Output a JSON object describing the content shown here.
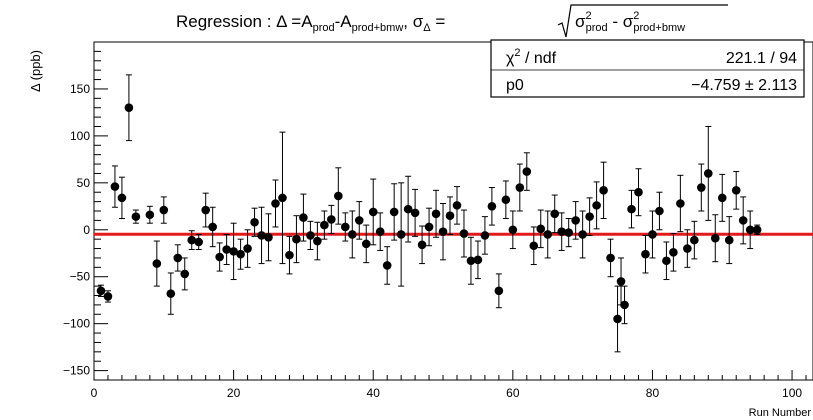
{
  "chart_data": {
    "type": "scatter",
    "title": {
      "main": "Regression : Δ =A",
      "sub1": "prod",
      "mid1": "-A",
      "sub2": "prod+bmw",
      "mid2": ", σ",
      "sub3": "Δ",
      "mid3": " = ",
      "rad_sigma1": "σ",
      "rad_sup1": "2",
      "rad_sub1": "prod",
      "rad_minus": " - ",
      "rad_sigma2": "σ",
      "rad_sup2": "2",
      "rad_sub2": "prod+bmw"
    },
    "xlabel": "Run Number",
    "ylabel": "Δ (ppb)",
    "xlim": [
      0,
      103
    ],
    "ylim": [
      -160,
      200
    ],
    "x_ticks": [
      0,
      20,
      40,
      60,
      80,
      100
    ],
    "y_ticks": [
      -150,
      -100,
      -50,
      0,
      50,
      100,
      150
    ],
    "y_tick_labels": [
      "−150",
      "−100",
      "−50",
      "0",
      "50",
      "100",
      "150"
    ],
    "fit": {
      "function": "constant",
      "p0": -4.759,
      "p0_error": 2.113,
      "color": "#e31a1c"
    },
    "stats": {
      "chi2_label": "χ",
      "chi2_sup": "2",
      "chi2_rest": " / ndf",
      "chi2_value": "221.1 / 94",
      "p0_label": "p0",
      "p0_value": "−4.759 ± 2.113"
    },
    "points": [
      {
        "x": 1,
        "y": -65,
        "err": 6
      },
      {
        "x": 2,
        "y": -71,
        "err": 6
      },
      {
        "x": 3,
        "y": 46,
        "err": 22
      },
      {
        "x": 4,
        "y": 34,
        "err": 22
      },
      {
        "x": 5,
        "y": 130,
        "err": 35
      },
      {
        "x": 6,
        "y": 14,
        "err": 7
      },
      {
        "x": 8,
        "y": 16,
        "err": 9
      },
      {
        "x": 9,
        "y": -36,
        "err": 24
      },
      {
        "x": 10,
        "y": 21,
        "err": 14
      },
      {
        "x": 11,
        "y": -68,
        "err": 22
      },
      {
        "x": 12,
        "y": -30,
        "err": 14
      },
      {
        "x": 13,
        "y": -47,
        "err": 17
      },
      {
        "x": 14,
        "y": -11,
        "err": 10
      },
      {
        "x": 15,
        "y": -13,
        "err": 8
      },
      {
        "x": 16,
        "y": 21,
        "err": 18
      },
      {
        "x": 17,
        "y": 3,
        "err": 21
      },
      {
        "x": 18,
        "y": -29,
        "err": 15
      },
      {
        "x": 19,
        "y": -21,
        "err": 16
      },
      {
        "x": 20,
        "y": -23,
        "err": 30
      },
      {
        "x": 21,
        "y": -26,
        "err": 16
      },
      {
        "x": 22,
        "y": -20,
        "err": 20
      },
      {
        "x": 23,
        "y": 8,
        "err": 15
      },
      {
        "x": 24,
        "y": -6,
        "err": 30
      },
      {
        "x": 25,
        "y": -8,
        "err": 25
      },
      {
        "x": 26,
        "y": 28,
        "err": 25
      },
      {
        "x": 27,
        "y": 34,
        "err": 70
      },
      {
        "x": 28,
        "y": -27,
        "err": 20
      },
      {
        "x": 29,
        "y": -10,
        "err": 25
      },
      {
        "x": 30,
        "y": 13,
        "err": 25
      },
      {
        "x": 31,
        "y": -6,
        "err": 15
      },
      {
        "x": 32,
        "y": -12,
        "err": 20
      },
      {
        "x": 33,
        "y": 5,
        "err": 15
      },
      {
        "x": 34,
        "y": 11,
        "err": 15
      },
      {
        "x": 35,
        "y": 36,
        "err": 30
      },
      {
        "x": 36,
        "y": 3,
        "err": 15
      },
      {
        "x": 37,
        "y": -5,
        "err": 25
      },
      {
        "x": 38,
        "y": 10,
        "err": 20
      },
      {
        "x": 39,
        "y": -15,
        "err": 20
      },
      {
        "x": 40,
        "y": 19,
        "err": 35
      },
      {
        "x": 41,
        "y": -2,
        "err": 20
      },
      {
        "x": 42,
        "y": -38,
        "err": 20
      },
      {
        "x": 43,
        "y": 19,
        "err": 30
      },
      {
        "x": 44,
        "y": -5,
        "err": 55
      },
      {
        "x": 45,
        "y": 22,
        "err": 35
      },
      {
        "x": 46,
        "y": 18,
        "err": 25
      },
      {
        "x": 47,
        "y": -16,
        "err": 20
      },
      {
        "x": 48,
        "y": 3,
        "err": 20
      },
      {
        "x": 49,
        "y": 17,
        "err": 25
      },
      {
        "x": 50,
        "y": -2,
        "err": 30
      },
      {
        "x": 51,
        "y": 15,
        "err": 20
      },
      {
        "x": 52,
        "y": 26,
        "err": 20
      },
      {
        "x": 53,
        "y": -4,
        "err": 25
      },
      {
        "x": 54,
        "y": -33,
        "err": 25
      },
      {
        "x": 55,
        "y": -32,
        "err": 20
      },
      {
        "x": 56,
        "y": -6,
        "err": 20
      },
      {
        "x": 57,
        "y": 25,
        "err": 20
      },
      {
        "x": 58,
        "y": -65,
        "err": 18
      },
      {
        "x": 59,
        "y": 32,
        "err": 20
      },
      {
        "x": 60,
        "y": 0,
        "err": 20
      },
      {
        "x": 61,
        "y": 45,
        "err": 25
      },
      {
        "x": 62,
        "y": 62,
        "err": 20
      },
      {
        "x": 63,
        "y": -17,
        "err": 20
      },
      {
        "x": 64,
        "y": 1,
        "err": 20
      },
      {
        "x": 65,
        "y": -5,
        "err": 25
      },
      {
        "x": 66,
        "y": 17,
        "err": 20
      },
      {
        "x": 67,
        "y": -2,
        "err": 20
      },
      {
        "x": 68,
        "y": -3,
        "err": 15
      },
      {
        "x": 69,
        "y": 10,
        "err": 20
      },
      {
        "x": 70,
        "y": -5,
        "err": 25
      },
      {
        "x": 71,
        "y": 14,
        "err": 20
      },
      {
        "x": 72,
        "y": 26,
        "err": 25
      },
      {
        "x": 73,
        "y": 42,
        "err": 30
      },
      {
        "x": 74,
        "y": -30,
        "err": 20
      },
      {
        "x": 75,
        "y": -95,
        "err": 35
      },
      {
        "x": 75.5,
        "y": -55,
        "err": 25
      },
      {
        "x": 76,
        "y": -80,
        "err": 20
      },
      {
        "x": 77,
        "y": 22,
        "err": 20
      },
      {
        "x": 78,
        "y": 40,
        "err": 25
      },
      {
        "x": 79,
        "y": -26,
        "err": 20
      },
      {
        "x": 80,
        "y": -5,
        "err": 25
      },
      {
        "x": 81,
        "y": 20,
        "err": 20
      },
      {
        "x": 82,
        "y": -33,
        "err": 20
      },
      {
        "x": 83,
        "y": -24,
        "err": 20
      },
      {
        "x": 84,
        "y": 28,
        "err": 30
      },
      {
        "x": 85,
        "y": -20,
        "err": 20
      },
      {
        "x": 86,
        "y": -11,
        "err": 20
      },
      {
        "x": 87,
        "y": 45,
        "err": 25
      },
      {
        "x": 88,
        "y": 60,
        "err": 50
      },
      {
        "x": 89,
        "y": -9,
        "err": 25
      },
      {
        "x": 90,
        "y": 34,
        "err": 25
      },
      {
        "x": 91,
        "y": -11,
        "err": 25
      },
      {
        "x": 92,
        "y": 42,
        "err": 20
      },
      {
        "x": 93,
        "y": 10,
        "err": 25
      },
      {
        "x": 94,
        "y": 0,
        "err": 20
      },
      {
        "x": 95,
        "y": 0,
        "err": 5
      }
    ]
  }
}
